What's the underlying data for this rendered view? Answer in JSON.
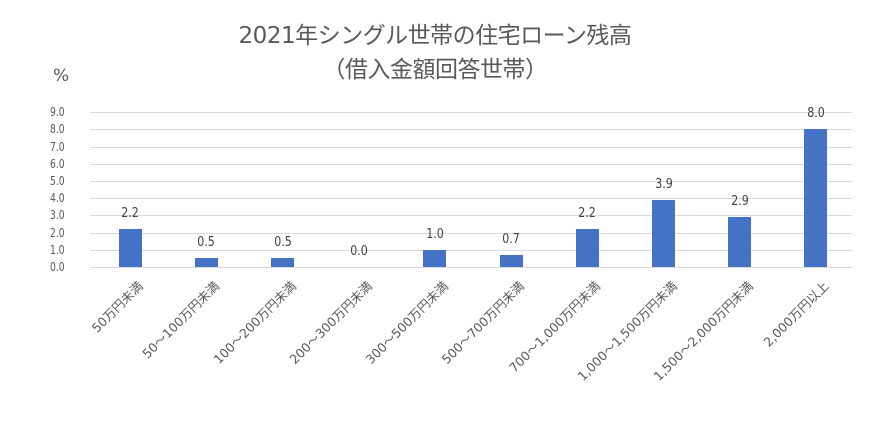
{
  "chart_data": {
    "type": "bar",
    "title": "2021年シングル世帯の住宅ローン残高",
    "subtitle": "（借入金額回答世帯）",
    "xlabel": "",
    "ylabel": "%",
    "ylim": [
      0,
      9
    ],
    "yticks": [
      "0.0",
      "1.0",
      "2.0",
      "3.0",
      "4.0",
      "5.0",
      "6.0",
      "7.0",
      "8.0",
      "9.0"
    ],
    "grid": true,
    "legend": "none",
    "color": "#4472C4",
    "categories": [
      "50万円未満",
      "50～100万円未満",
      "100～200万円未満",
      "200～300万円未満",
      "300～500万円未満",
      "500～700万円未満",
      "700～1,000万円未満",
      "1,000～1,500万円未満",
      "1,500～2,000万円未満",
      "2,000万円以上"
    ],
    "values": [
      2.2,
      0.5,
      0.5,
      0.0,
      1.0,
      0.7,
      2.2,
      3.9,
      2.9,
      8.0
    ],
    "data_labels": [
      "2.2",
      "0.5",
      "0.5",
      "0.0",
      "1.0",
      "0.7",
      "2.2",
      "3.9",
      "2.9",
      "8.0"
    ]
  }
}
